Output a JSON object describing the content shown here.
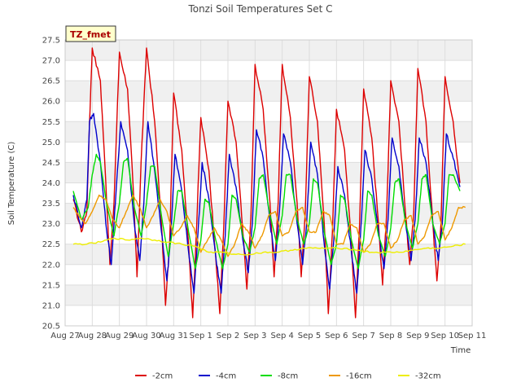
{
  "chart_data": {
    "type": "line",
    "title": "Tonzi Soil Temperatures Set C",
    "xlabel": "Time",
    "ylabel": "Soil Temperature (C)",
    "badge": "TZ_fmet",
    "ylim": [
      20.5,
      27.5
    ],
    "xlim": [
      0,
      15
    ],
    "y_ticks": [
      20.5,
      21.0,
      21.5,
      22.0,
      22.5,
      23.0,
      23.5,
      24.0,
      24.5,
      25.0,
      25.5,
      26.0,
      26.5,
      27.0,
      27.5
    ],
    "x_ticks": [
      0,
      1,
      2,
      3,
      4,
      5,
      6,
      7,
      8,
      9,
      10,
      11,
      12,
      13,
      14,
      15
    ],
    "x_tick_labels": [
      "Aug 27",
      "Aug 28",
      "Aug 29",
      "Aug 30",
      "Aug 31",
      "Sep 1",
      "Sep 2",
      "Sep 3",
      "Sep 4",
      "Sep 5",
      "Sep 6",
      "Sep 7",
      "Sep 8",
      "Sep 9",
      "Sep 10",
      "Sep 11"
    ],
    "grid": true,
    "legend_position": "bottom",
    "series": [
      {
        "name": "-2cm",
        "color": "#dd0000",
        "x": [
          0.3,
          0.6,
          0.8,
          0.9,
          1.0,
          1.3,
          1.5,
          1.65,
          1.8,
          2.0,
          2.3,
          2.5,
          2.65,
          2.8,
          3.0,
          3.3,
          3.55,
          3.7,
          3.85,
          4.0,
          4.3,
          4.55,
          4.7,
          4.85,
          5.0,
          5.3,
          5.55,
          5.7,
          5.85,
          6.0,
          6.3,
          6.55,
          6.7,
          6.85,
          7.0,
          7.3,
          7.55,
          7.7,
          7.85,
          8.0,
          8.3,
          8.55,
          8.7,
          8.85,
          9.0,
          9.3,
          9.55,
          9.7,
          9.85,
          10.0,
          10.3,
          10.55,
          10.7,
          10.85,
          11.0,
          11.3,
          11.55,
          11.7,
          11.85,
          12.0,
          12.3,
          12.55,
          12.7,
          12.85,
          13.0,
          13.3,
          13.55,
          13.7,
          13.85,
          14.0,
          14.3,
          14.55,
          14.7,
          14.85,
          15.0
        ],
        "y": [
          23.6,
          22.8,
          23.3,
          25.5,
          27.3,
          26.5,
          24.0,
          22.0,
          23.5,
          27.2,
          26.3,
          24.0,
          21.7,
          24.5,
          27.3,
          25.5,
          23.0,
          21.0,
          22.5,
          26.2,
          24.8,
          22.5,
          20.7,
          23.0,
          25.6,
          24.3,
          22.2,
          20.8,
          23.0,
          26.0,
          25.0,
          22.8,
          21.4,
          23.2,
          26.9,
          25.8,
          23.5,
          21.7,
          23.5,
          26.9,
          25.6,
          23.5,
          21.7,
          23.3,
          26.6,
          25.5,
          23.0,
          20.8,
          22.8,
          25.8,
          24.8,
          22.5,
          20.7,
          23.0,
          26.3,
          25.1,
          23.0,
          21.5,
          23.3,
          26.5,
          25.5,
          23.2,
          22.0,
          23.3,
          26.8,
          25.5,
          23.0,
          21.6,
          23.0,
          26.6,
          25.5,
          24.0,
          null,
          null,
          null
        ]
      },
      {
        "name": "-4cm",
        "color": "#0000cc",
        "x": [
          0.3,
          0.6,
          0.8,
          0.9,
          1.05,
          1.3,
          1.5,
          1.7,
          1.85,
          2.05,
          2.3,
          2.55,
          2.75,
          2.9,
          3.05,
          3.3,
          3.55,
          3.75,
          3.9,
          4.05,
          4.3,
          4.55,
          4.75,
          4.9,
          5.05,
          5.3,
          5.55,
          5.75,
          5.9,
          6.05,
          6.3,
          6.55,
          6.75,
          6.9,
          7.05,
          7.3,
          7.55,
          7.75,
          7.9,
          8.05,
          8.3,
          8.55,
          8.75,
          8.9,
          9.05,
          9.3,
          9.55,
          9.75,
          9.9,
          10.05,
          10.3,
          10.55,
          10.75,
          10.9,
          11.05,
          11.3,
          11.55,
          11.75,
          11.9,
          12.05,
          12.3,
          12.55,
          12.75,
          12.9,
          13.05,
          13.3,
          13.55,
          13.75,
          13.9,
          14.05,
          14.3,
          14.55,
          14.7,
          14.85,
          15.0
        ],
        "y": [
          23.7,
          22.9,
          23.6,
          25.5,
          25.7,
          24.5,
          23.0,
          22.0,
          23.5,
          25.5,
          24.8,
          23.0,
          22.1,
          23.5,
          25.5,
          24.3,
          22.8,
          21.6,
          22.8,
          24.7,
          23.8,
          22.3,
          21.3,
          22.8,
          24.5,
          23.6,
          22.2,
          21.3,
          22.7,
          24.7,
          23.9,
          22.6,
          21.8,
          23.0,
          25.3,
          24.6,
          23.0,
          22.1,
          23.3,
          25.2,
          24.5,
          23.0,
          22.0,
          23.0,
          25.0,
          24.2,
          22.5,
          21.4,
          22.6,
          24.4,
          23.7,
          22.3,
          21.3,
          22.9,
          24.8,
          24.1,
          22.8,
          21.9,
          23.1,
          25.1,
          24.4,
          23.0,
          22.1,
          23.1,
          25.1,
          24.5,
          23.0,
          22.1,
          23.0,
          25.2,
          24.6,
          23.9,
          null,
          null,
          null
        ]
      },
      {
        "name": "-8cm",
        "color": "#00dd00",
        "x": [
          0.3,
          0.6,
          0.85,
          1.0,
          1.15,
          1.3,
          1.55,
          1.8,
          2.0,
          2.15,
          2.3,
          2.55,
          2.8,
          3.0,
          3.15,
          3.3,
          3.55,
          3.8,
          4.0,
          4.15,
          4.3,
          4.55,
          4.8,
          5.0,
          5.15,
          5.3,
          5.55,
          5.8,
          6.0,
          6.15,
          6.3,
          6.55,
          6.8,
          7.0,
          7.15,
          7.3,
          7.55,
          7.8,
          8.0,
          8.15,
          8.3,
          8.55,
          8.8,
          9.0,
          9.15,
          9.3,
          9.55,
          9.8,
          10.0,
          10.15,
          10.3,
          10.55,
          10.8,
          11.0,
          11.15,
          11.3,
          11.55,
          11.8,
          12.0,
          12.15,
          12.3,
          12.55,
          12.8,
          13.0,
          13.15,
          13.3,
          13.55,
          13.8,
          14.0,
          14.15,
          14.3,
          14.55,
          14.7,
          14.85,
          15.0
        ],
        "y": [
          23.8,
          23.1,
          23.4,
          24.2,
          24.7,
          24.5,
          23.4,
          22.7,
          23.5,
          24.5,
          24.6,
          23.4,
          22.7,
          23.5,
          24.4,
          24.4,
          23.2,
          22.2,
          23.0,
          23.8,
          23.8,
          22.8,
          21.9,
          22.6,
          23.6,
          23.5,
          22.6,
          21.9,
          22.5,
          23.7,
          23.6,
          22.7,
          22.3,
          22.9,
          24.1,
          24.2,
          23.2,
          22.5,
          23.2,
          24.2,
          24.2,
          23.1,
          22.5,
          23.0,
          24.1,
          24.0,
          22.8,
          22.0,
          22.5,
          23.7,
          23.6,
          22.6,
          21.9,
          22.6,
          23.8,
          23.7,
          22.7,
          22.2,
          22.9,
          24.0,
          24.1,
          23.0,
          22.4,
          23.0,
          24.1,
          24.2,
          23.0,
          22.5,
          23.0,
          24.2,
          24.2,
          23.8,
          null,
          null,
          null
        ]
      },
      {
        "name": "-16cm",
        "color": "#ee9900",
        "x": [
          0.3,
          0.5,
          0.75,
          1.0,
          1.25,
          1.5,
          1.75,
          2.0,
          2.25,
          2.5,
          2.75,
          3.0,
          3.25,
          3.5,
          3.75,
          4.0,
          4.25,
          4.5,
          4.75,
          5.0,
          5.25,
          5.5,
          5.75,
          6.0,
          6.25,
          6.5,
          6.75,
          7.0,
          7.25,
          7.5,
          7.75,
          8.0,
          8.25,
          8.5,
          8.75,
          9.0,
          9.25,
          9.5,
          9.75,
          10.0,
          10.25,
          10.5,
          10.75,
          11.0,
          11.25,
          11.5,
          11.75,
          12.0,
          12.25,
          12.5,
          12.75,
          13.0,
          13.25,
          13.5,
          13.75,
          14.0,
          14.25,
          14.5,
          14.75
        ],
        "y": [
          23.4,
          23.2,
          23.0,
          23.3,
          23.7,
          23.6,
          23.1,
          22.9,
          23.3,
          23.7,
          23.4,
          22.9,
          23.2,
          23.6,
          23.3,
          22.7,
          22.9,
          23.2,
          22.9,
          22.3,
          22.6,
          22.9,
          22.6,
          22.2,
          22.5,
          23.0,
          22.8,
          22.4,
          22.7,
          23.2,
          23.3,
          22.7,
          22.8,
          23.3,
          23.4,
          22.8,
          22.8,
          23.3,
          23.2,
          22.5,
          22.5,
          23.0,
          22.9,
          22.3,
          22.5,
          23.0,
          23.0,
          22.4,
          22.6,
          23.1,
          23.2,
          22.5,
          22.7,
          23.2,
          23.3,
          22.6,
          22.9,
          23.4,
          23.4
        ]
      },
      {
        "name": "-32cm",
        "color": "#eeee00",
        "x": [
          0.3,
          0.8,
          1.3,
          1.8,
          2.3,
          2.8,
          3.3,
          3.8,
          4.3,
          4.8,
          5.3,
          5.8,
          6.3,
          6.8,
          7.3,
          7.8,
          8.3,
          8.8,
          9.3,
          9.8,
          10.3,
          10.8,
          11.3,
          11.8,
          12.3,
          12.8,
          13.3,
          13.8,
          14.3,
          14.75
        ],
        "y": [
          22.5,
          22.5,
          22.55,
          22.65,
          22.6,
          22.65,
          22.6,
          22.55,
          22.5,
          22.45,
          22.3,
          22.3,
          22.25,
          22.25,
          22.3,
          22.3,
          22.35,
          22.4,
          22.4,
          22.4,
          22.4,
          22.35,
          22.3,
          22.3,
          22.3,
          22.35,
          22.4,
          22.4,
          22.45,
          22.5
        ]
      }
    ]
  }
}
